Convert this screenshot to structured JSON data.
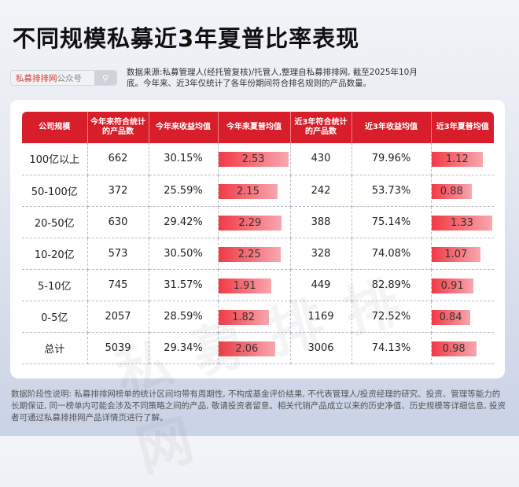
{
  "title": "不同规模私募近3年夏普比率表现",
  "search": {
    "brand": "私募排排网",
    "suffix": "公众号",
    "icon": "search-icon"
  },
  "source": "数据来源:私募管理人(经托管复核)/托管人,整理自私募排排网, 截至2025年10月底。今年来、近3年仅统计了各年份期间符合排名规则的产品数量。",
  "watermark": "私募排排网",
  "colors": {
    "header": "#d71e2a",
    "bar": "#f13a45"
  },
  "table": {
    "headers": [
      "公司规模",
      "今年来符合统计 的产品数",
      "今年来收益均值",
      "今年来夏普均值",
      "近3年符合统计的产品数",
      "近3年收益均值",
      "近3年夏普均值"
    ],
    "rows": [
      [
        "100亿以上",
        "662",
        "30.15%",
        "2.53",
        "430",
        "79.96%",
        "1.12"
      ],
      [
        "50-100亿",
        "372",
        "25.59%",
        "2.15",
        "242",
        "53.73%",
        "0.88"
      ],
      [
        "20-50亿",
        "630",
        "29.42%",
        "2.29",
        "388",
        "75.14%",
        "1.33"
      ],
      [
        "10-20亿",
        "573",
        "30.50%",
        "2.25",
        "328",
        "74.08%",
        "1.07"
      ],
      [
        "5-10亿",
        "745",
        "31.57%",
        "1.91",
        "449",
        "82.89%",
        "0.91"
      ],
      [
        "0-5亿",
        "2057",
        "28.59%",
        "1.82",
        "1169",
        "72.52%",
        "0.84"
      ],
      [
        "总计",
        "5039",
        "29.34%",
        "2.06",
        "3006",
        "74.13%",
        "0.98"
      ]
    ]
  },
  "footer": "数据阶段性说明: 私募排排网榜单的统计区间均带有周期性, 不构成基金评价结果, 不代表管理人/投资经理的研究、投资、管理等能力的长期保证, 同一榜单内可能会涉及不同策略之间的产品, 敬请投资者留意。相关代销产品成立以来的历史净值、历史规模等详细信息, 投资者可通过私募排排网产品详情页进行了解。"
}
